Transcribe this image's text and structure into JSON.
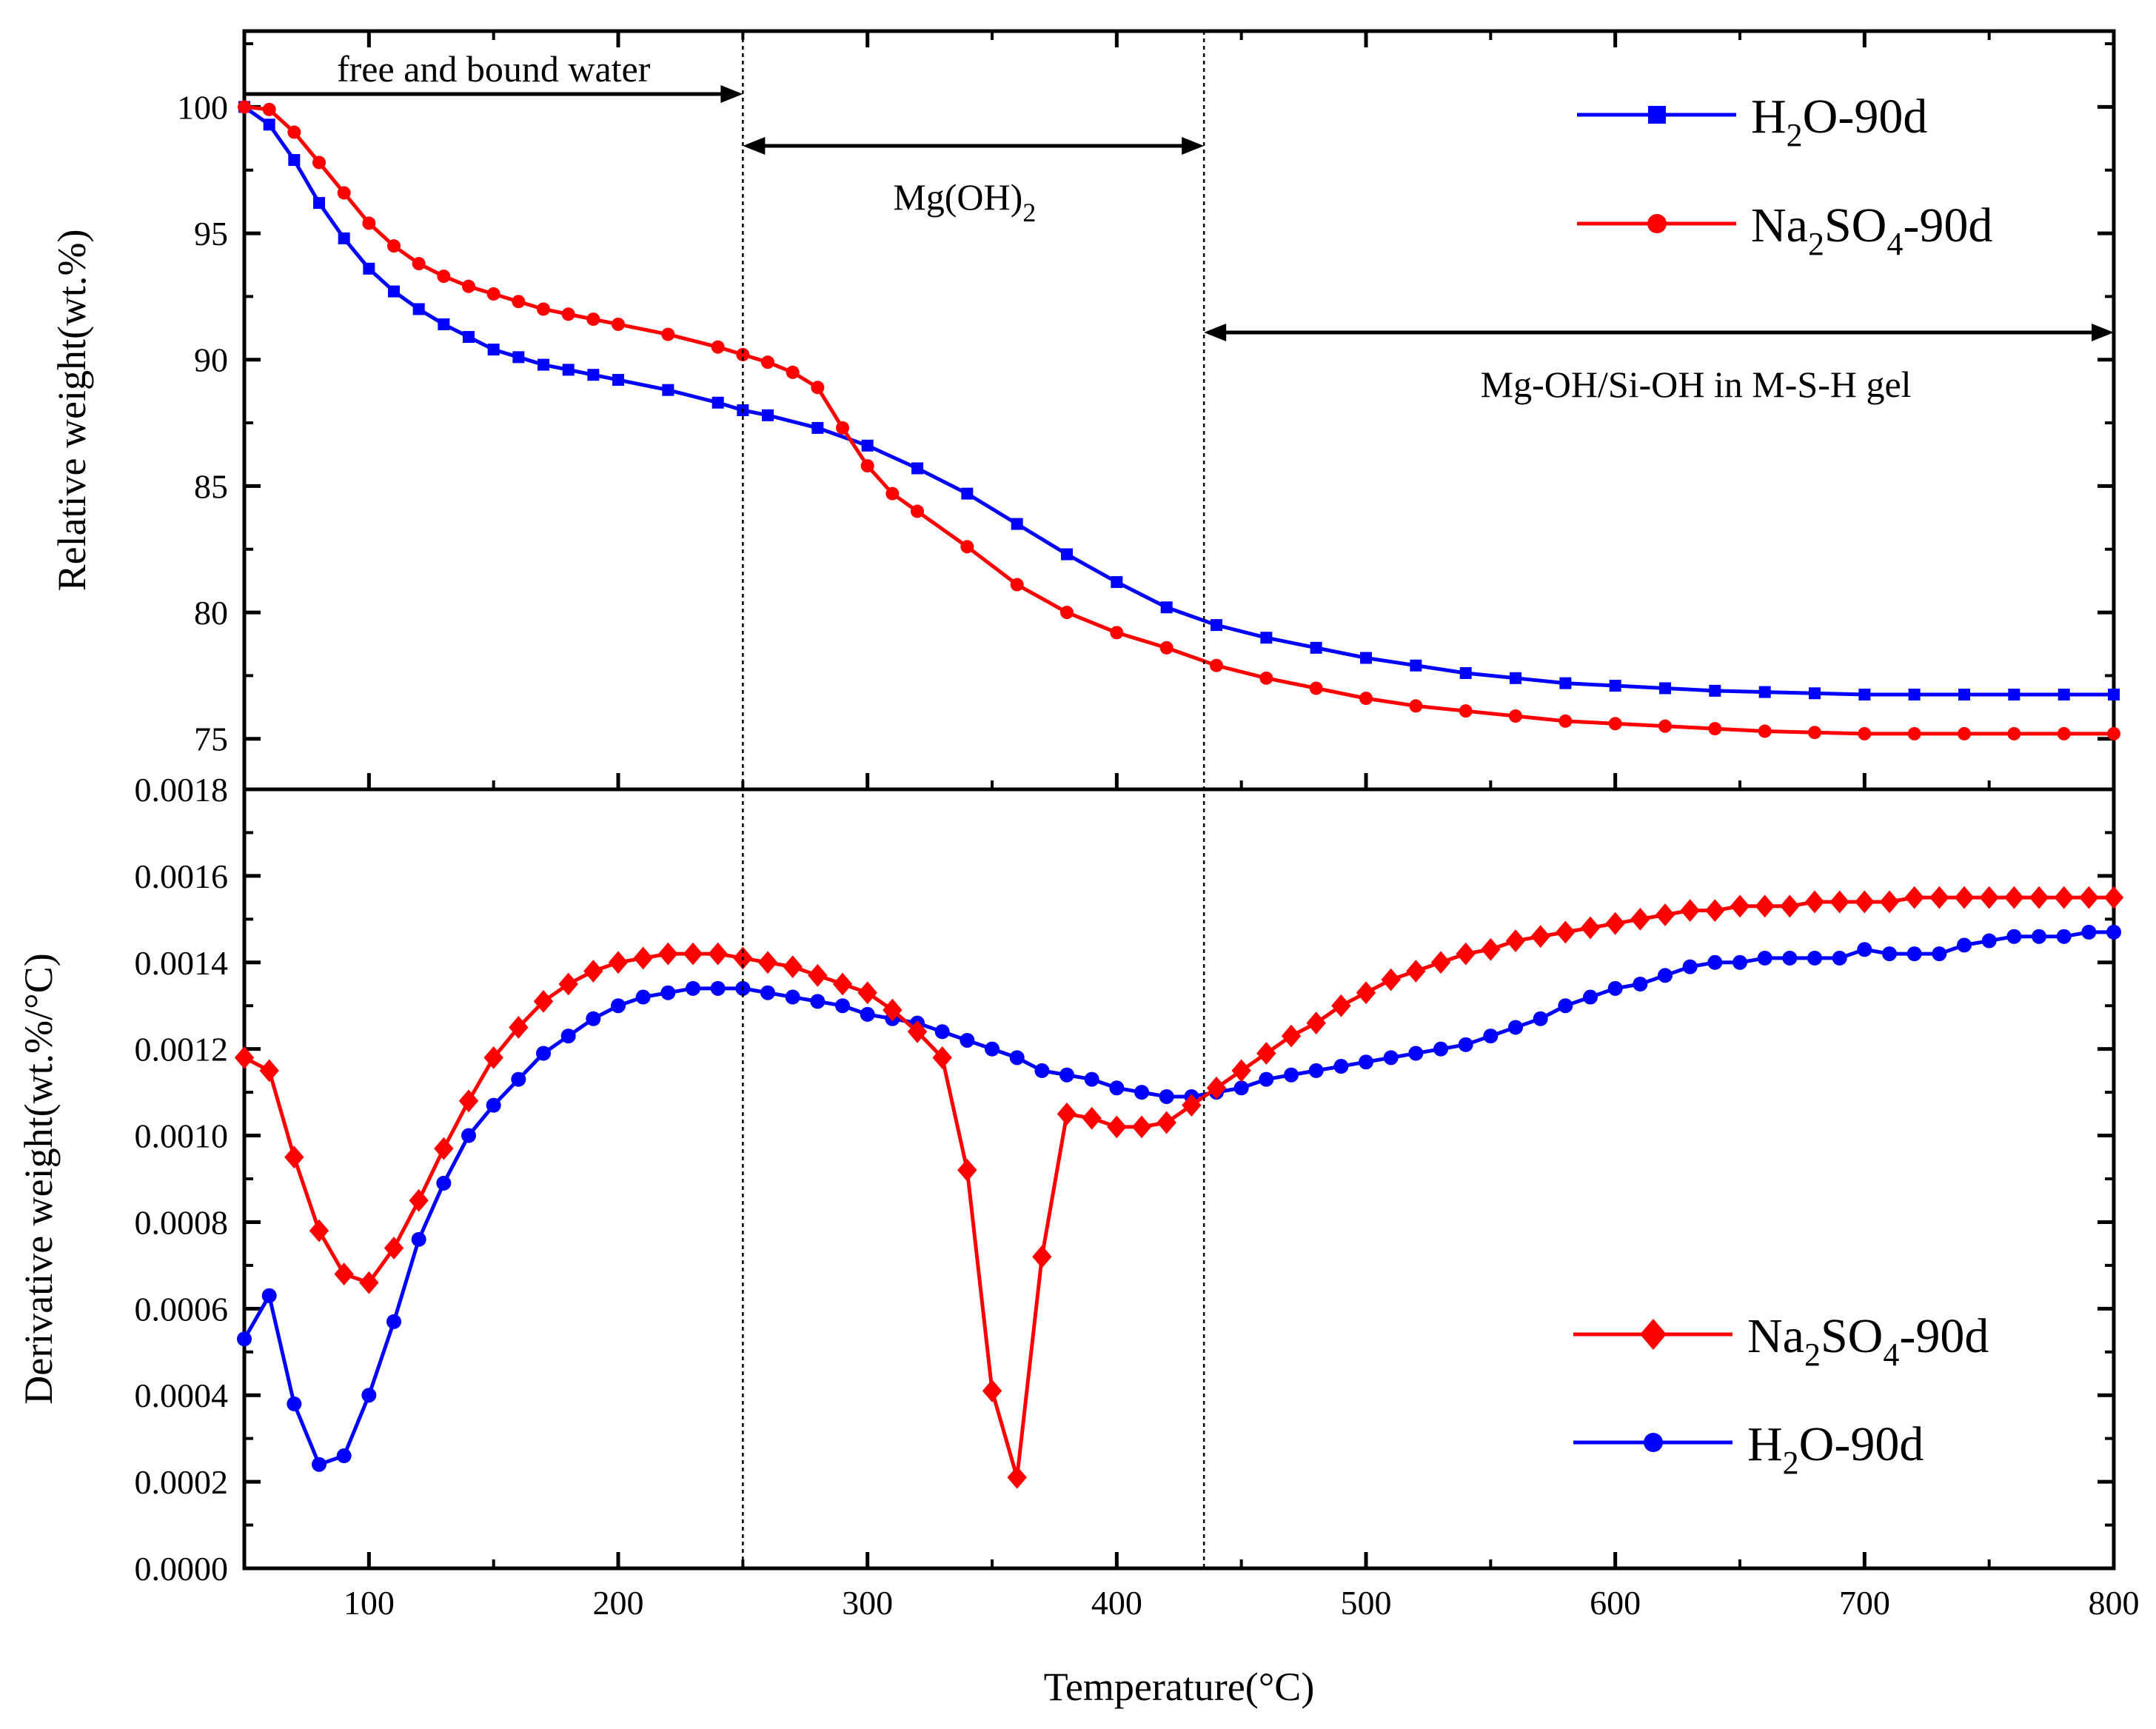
{
  "chart_data": [
    {
      "type": "line",
      "panel": "top",
      "ylabel": "Relative weight(wt.%)",
      "ylim": [
        73,
        103
      ],
      "xlim": [
        50,
        800
      ],
      "yticks": [
        75,
        80,
        85,
        90,
        95,
        100
      ],
      "series": [
        {
          "name": "H2O-90d",
          "legend_main": "H",
          "legend_sub": "2",
          "legend_rest": "O-90d",
          "color": "#0000ff",
          "marker": "square",
          "x": [
            50,
            60,
            70,
            80,
            90,
            100,
            110,
            120,
            130,
            140,
            150,
            160,
            170,
            180,
            190,
            200,
            220,
            240,
            250,
            260,
            280,
            300,
            320,
            340,
            360,
            380,
            400,
            420,
            440,
            460,
            480,
            500,
            520,
            540,
            560,
            580,
            600,
            620,
            640,
            660,
            680,
            700,
            720,
            740,
            760,
            780,
            800
          ],
          "y": [
            100,
            99.3,
            97.9,
            96.2,
            94.8,
            93.6,
            92.7,
            92.0,
            91.4,
            90.9,
            90.4,
            90.1,
            89.8,
            89.6,
            89.4,
            89.2,
            88.8,
            88.3,
            88.0,
            87.8,
            87.3,
            86.6,
            85.7,
            84.7,
            83.5,
            82.3,
            81.2,
            80.2,
            79.5,
            79.0,
            78.6,
            78.2,
            77.9,
            77.6,
            77.4,
            77.2,
            77.1,
            77.0,
            76.9,
            76.85,
            76.8,
            76.75,
            76.75,
            76.75,
            76.75,
            76.75,
            76.75
          ]
        },
        {
          "name": "Na2SO4-90d",
          "legend_main": "Na",
          "legend_sub": "2",
          "legend_mid": "SO",
          "legend_sub2": "4",
          "legend_rest": "-90d",
          "color": "#ff0000",
          "marker": "circle",
          "x": [
            50,
            60,
            70,
            80,
            90,
            100,
            110,
            120,
            130,
            140,
            150,
            160,
            170,
            180,
            190,
            200,
            220,
            240,
            250,
            260,
            270,
            280,
            290,
            300,
            310,
            320,
            340,
            360,
            380,
            400,
            420,
            440,
            460,
            480,
            500,
            520,
            540,
            560,
            580,
            600,
            620,
            640,
            660,
            680,
            700,
            720,
            740,
            760,
            780,
            800
          ],
          "y": [
            100,
            99.9,
            99.0,
            97.8,
            96.6,
            95.4,
            94.5,
            93.8,
            93.3,
            92.9,
            92.6,
            92.3,
            92.0,
            91.8,
            91.6,
            91.4,
            91.0,
            90.5,
            90.2,
            89.9,
            89.5,
            88.9,
            87.3,
            85.8,
            84.7,
            84.0,
            82.6,
            81.1,
            80.0,
            79.2,
            78.6,
            77.9,
            77.4,
            77.0,
            76.6,
            76.3,
            76.1,
            75.9,
            75.7,
            75.6,
            75.5,
            75.4,
            75.3,
            75.25,
            75.2,
            75.2,
            75.2,
            75.2,
            75.2,
            75.2
          ]
        }
      ]
    },
    {
      "type": "line",
      "panel": "bottom",
      "xlabel": "Temperature(°C)",
      "ylabel": "Derivative weight(wt.%/°C)",
      "ylim": [
        0,
        0.0018
      ],
      "xlim": [
        50,
        800
      ],
      "yticks": [
        "0.0000",
        "0.0002",
        "0.0004",
        "0.0006",
        "0.0008",
        "0.0010",
        "0.0012",
        "0.0014",
        "0.0016",
        "0.0018"
      ],
      "xticks": [
        100,
        200,
        300,
        400,
        500,
        600,
        700,
        800
      ],
      "series": [
        {
          "name": "Na2SO4-90d",
          "legend_main": "Na",
          "legend_sub": "2",
          "legend_mid": "SO",
          "legend_sub2": "4",
          "legend_rest": "-90d",
          "color": "#ff0000",
          "marker": "diamond",
          "x": [
            50,
            60,
            70,
            80,
            90,
            100,
            110,
            120,
            130,
            140,
            150,
            160,
            170,
            180,
            190,
            200,
            210,
            220,
            230,
            240,
            250,
            260,
            270,
            280,
            290,
            300,
            310,
            320,
            330,
            340,
            350,
            360,
            370,
            380,
            390,
            400,
            410,
            420,
            430,
            440,
            450,
            460,
            470,
            480,
            490,
            500,
            510,
            520,
            530,
            540,
            550,
            560,
            570,
            580,
            590,
            600,
            610,
            620,
            630,
            640,
            650,
            660,
            670,
            680,
            690,
            700,
            710,
            720,
            730,
            740,
            750,
            760,
            770,
            780,
            790,
            800
          ],
          "y": [
            0.00118,
            0.00115,
            0.00095,
            0.00078,
            0.00068,
            0.00066,
            0.00074,
            0.00085,
            0.00097,
            0.00108,
            0.00118,
            0.00125,
            0.00131,
            0.00135,
            0.00138,
            0.0014,
            0.00141,
            0.00142,
            0.00142,
            0.00142,
            0.00141,
            0.0014,
            0.00139,
            0.00137,
            0.00135,
            0.00133,
            0.00129,
            0.00124,
            0.00118,
            0.00092,
            0.00041,
            0.00021,
            0.00072,
            0.00105,
            0.00104,
            0.00102,
            0.00102,
            0.00103,
            0.00107,
            0.00111,
            0.00115,
            0.00119,
            0.00123,
            0.00126,
            0.0013,
            0.00133,
            0.00136,
            0.00138,
            0.0014,
            0.00142,
            0.00143,
            0.00145,
            0.00146,
            0.00147,
            0.00148,
            0.00149,
            0.0015,
            0.00151,
            0.00152,
            0.00152,
            0.00153,
            0.00153,
            0.00153,
            0.00154,
            0.00154,
            0.00154,
            0.00154,
            0.00155,
            0.00155,
            0.00155,
            0.00155,
            0.00155,
            0.00155,
            0.00155,
            0.00155,
            0.00155
          ]
        },
        {
          "name": "H2O-90d",
          "legend_main": "H",
          "legend_sub": "2",
          "legend_rest": "O-90d",
          "color": "#0000ff",
          "marker": "circle",
          "x": [
            50,
            60,
            70,
            80,
            90,
            100,
            110,
            120,
            130,
            140,
            150,
            160,
            170,
            180,
            190,
            200,
            210,
            220,
            230,
            240,
            250,
            260,
            270,
            280,
            290,
            300,
            310,
            320,
            330,
            340,
            350,
            360,
            370,
            380,
            390,
            400,
            410,
            420,
            430,
            440,
            450,
            460,
            470,
            480,
            490,
            500,
            510,
            520,
            530,
            540,
            550,
            560,
            570,
            580,
            590,
            600,
            610,
            620,
            630,
            640,
            650,
            660,
            670,
            680,
            690,
            700,
            710,
            720,
            730,
            740,
            750,
            760,
            770,
            780,
            790,
            800
          ],
          "y": [
            0.00053,
            0.00063,
            0.00038,
            0.00024,
            0.00026,
            0.0004,
            0.00057,
            0.00076,
            0.00089,
            0.001,
            0.00107,
            0.00113,
            0.00119,
            0.00123,
            0.00127,
            0.0013,
            0.00132,
            0.00133,
            0.00134,
            0.00134,
            0.00134,
            0.00133,
            0.00132,
            0.00131,
            0.0013,
            0.00128,
            0.00127,
            0.00126,
            0.00124,
            0.00122,
            0.0012,
            0.00118,
            0.00115,
            0.00114,
            0.00113,
            0.00111,
            0.0011,
            0.00109,
            0.00109,
            0.0011,
            0.00111,
            0.00113,
            0.00114,
            0.00115,
            0.00116,
            0.00117,
            0.00118,
            0.00119,
            0.0012,
            0.00121,
            0.00123,
            0.00125,
            0.00127,
            0.0013,
            0.00132,
            0.00134,
            0.00135,
            0.00137,
            0.00139,
            0.0014,
            0.0014,
            0.00141,
            0.00141,
            0.00141,
            0.00141,
            0.00143,
            0.00142,
            0.00142,
            0.00142,
            0.00144,
            0.00145,
            0.00146,
            0.00146,
            0.00146,
            0.00147,
            0.00147
          ]
        }
      ]
    }
  ],
  "annotations": {
    "free_water": "free and bound water",
    "mgoh2_main": "Mg(OH)",
    "mgoh2_sub": "2",
    "msh": "Mg-OH/Si-OH in M-S-H gel"
  },
  "region_bounds_x": [
    50,
    250,
    435,
    800
  ]
}
